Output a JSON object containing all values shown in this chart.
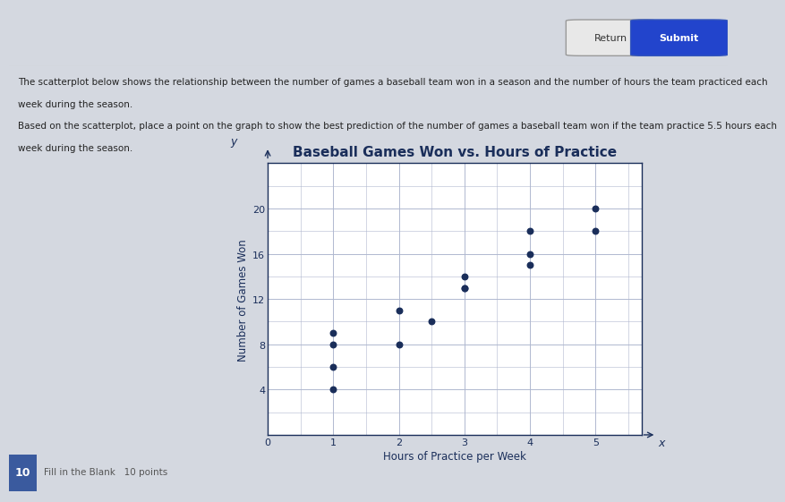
{
  "title": "Baseball Games Won vs. Hours of Practice",
  "xlabel": "Hours of Practice per Week",
  "ylabel": "Number of Games Won",
  "scatter_x": [
    1,
    1,
    1,
    1,
    2,
    2,
    2.5,
    3,
    3,
    3,
    4,
    4,
    4,
    5,
    5
  ],
  "scatter_y": [
    9,
    6,
    4,
    8,
    11,
    8,
    10,
    14,
    13,
    13,
    18,
    16,
    15,
    20,
    18
  ],
  "dot_color": "#1a2e5a",
  "dot_size": 22,
  "xlim": [
    0,
    5.7
  ],
  "ylim": [
    0,
    24
  ],
  "xticks": [
    0,
    1,
    2,
    3,
    4,
    5
  ],
  "yticks": [
    4,
    8,
    12,
    16,
    20
  ],
  "grid_color": "#b0b8d0",
  "plot_bg": "#ffffff",
  "fig_bg": "#d4d8e0",
  "title_fontsize": 11,
  "label_fontsize": 8.5,
  "tick_fontsize": 8,
  "text_color": "#1a2e5a",
  "button_return": "Return",
  "button_submit": "Submit",
  "q1_line1": "The scatterplot below shows the relationship between the number of games a baseball team won in a season and the number of hours the team practiced each",
  "q1_line2": "week during the season.",
  "q2_line1": "Based on the scatterplot, place a point on the graph to show the best prediction of the number of games a baseball team won if the team practice 5.5 hours each",
  "q2_line2": "week during the season.",
  "bottom_num": "10",
  "bottom_label": "Fill in the Blank   10 points",
  "bottom_num_bg": "#3a5a9e",
  "bottom_bar_bg": "#e8eaf0"
}
